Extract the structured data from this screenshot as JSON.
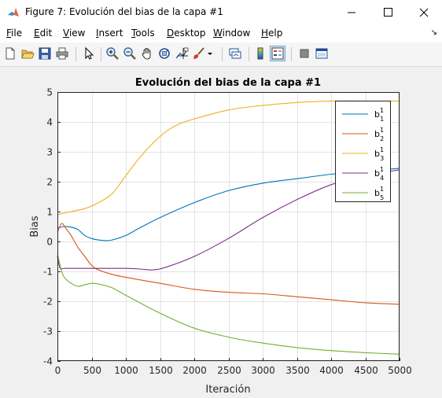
{
  "window": {
    "title": "Figure 7: Evolución del bias de la capa #1"
  },
  "menu": [
    "File",
    "Edit",
    "View",
    "Insert",
    "Tools",
    "Desktop",
    "Window",
    "Help"
  ],
  "toolbar_icons": [
    "new-figure-icon",
    "open-file-icon",
    "save-icon",
    "print-icon",
    "pointer-icon",
    "zoom-in-icon",
    "zoom-out-icon",
    "pan-icon",
    "rotate-3d-icon",
    "data-cursor-icon",
    "brush-icon",
    "link-plot-icon",
    "colorbar-icon",
    "legend-icon",
    "hide-plot-tools-icon",
    "show-plot-tools-icon"
  ],
  "chart_data": {
    "type": "line",
    "title": "Evolución del bias de la capa #1",
    "xlabel": "Iteración",
    "ylabel": "Bias",
    "xlim": [
      0,
      5000
    ],
    "ylim": [
      -4,
      5
    ],
    "xticks": [
      0,
      500,
      1000,
      1500,
      2000,
      2500,
      3000,
      3500,
      4000,
      4500,
      5000
    ],
    "yticks": [
      -4,
      -3,
      -2,
      -1,
      0,
      1,
      2,
      3,
      4,
      5
    ],
    "grid": true,
    "legend_position": "top-right",
    "series": [
      {
        "name": "b",
        "sup": "1",
        "sub": "1",
        "color": "#0072bd",
        "x": [
          0,
          100,
          200,
          300,
          400,
          500,
          600,
          700,
          800,
          1000,
          1200,
          1500,
          2000,
          2500,
          3000,
          3500,
          4000,
          4500,
          5000
        ],
        "y": [
          0.45,
          0.5,
          0.48,
          0.4,
          0.2,
          0.1,
          0.05,
          0.03,
          0.05,
          0.2,
          0.45,
          0.8,
          1.3,
          1.7,
          1.95,
          2.1,
          2.25,
          2.35,
          2.45
        ]
      },
      {
        "name": "b",
        "sup": "1",
        "sub": "2",
        "color": "#d95319",
        "x": [
          0,
          60,
          120,
          200,
          300,
          400,
          500,
          600,
          800,
          1000,
          1500,
          2000,
          2500,
          3000,
          3500,
          4000,
          4500,
          5000
        ],
        "y": [
          0.3,
          0.6,
          0.45,
          0.2,
          -0.2,
          -0.5,
          -0.8,
          -0.95,
          -1.1,
          -1.2,
          -1.4,
          -1.6,
          -1.7,
          -1.75,
          -1.85,
          -1.95,
          -2.05,
          -2.1
        ]
      },
      {
        "name": "b",
        "sup": "1",
        "sub": "3",
        "color": "#edb120",
        "x": [
          0,
          200,
          400,
          600,
          800,
          1000,
          1200,
          1400,
          1600,
          1800,
          2000,
          2500,
          3000,
          3500,
          4000,
          4500,
          5000
        ],
        "y": [
          0.9,
          1.0,
          1.1,
          1.3,
          1.6,
          2.2,
          2.8,
          3.3,
          3.7,
          3.95,
          4.1,
          4.4,
          4.55,
          4.65,
          4.7,
          4.7,
          4.7
        ]
      },
      {
        "name": "b",
        "sup": "1",
        "sub": "4",
        "color": "#7e2f8e",
        "x": [
          0,
          40,
          100,
          300,
          500,
          800,
          1000,
          1200,
          1400,
          1600,
          2000,
          2500,
          3000,
          3500,
          4000,
          4500,
          5000
        ],
        "y": [
          -0.5,
          -0.9,
          -0.9,
          -0.9,
          -0.9,
          -0.9,
          -0.9,
          -0.92,
          -0.95,
          -0.85,
          -0.5,
          0.1,
          0.8,
          1.4,
          1.9,
          2.2,
          2.4
        ]
      },
      {
        "name": "b",
        "sup": "1",
        "sub": "5",
        "color": "#77ac30",
        "x": [
          0,
          50,
          100,
          200,
          300,
          400,
          500,
          600,
          800,
          1000,
          1500,
          2000,
          2500,
          3000,
          3500,
          4000,
          4500,
          5000
        ],
        "y": [
          -0.4,
          -0.9,
          -1.2,
          -1.4,
          -1.5,
          -1.45,
          -1.4,
          -1.42,
          -1.55,
          -1.8,
          -2.4,
          -2.9,
          -3.2,
          -3.4,
          -3.55,
          -3.65,
          -3.72,
          -3.77
        ]
      }
    ]
  }
}
